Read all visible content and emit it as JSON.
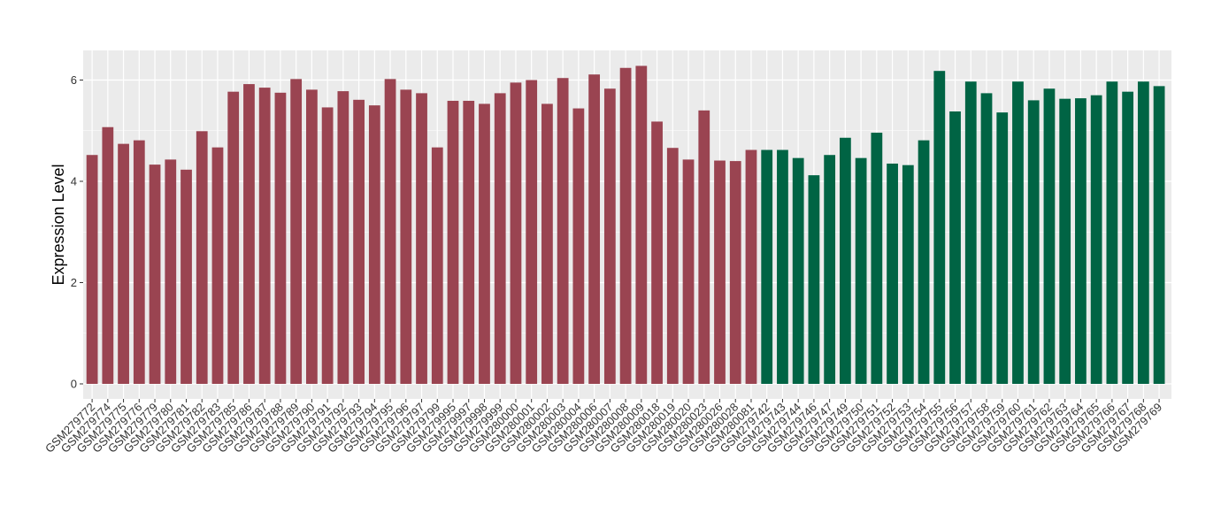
{
  "chart_data": {
    "type": "bar",
    "ylabel": "Expression Level",
    "xlabel": "",
    "ylim": [
      -0.3,
      6.6
    ],
    "yticks": [
      0,
      2,
      4,
      6
    ],
    "grid": true,
    "legend": "none",
    "colors": {
      "group1": "#9a4451",
      "group2": "#006444",
      "panel": "#ebebeb",
      "grid": "#ffffff"
    },
    "categories": [
      "GSM279772",
      "GSM279774",
      "GSM279775",
      "GSM279776",
      "GSM279779",
      "GSM279780",
      "GSM279781",
      "GSM279782",
      "GSM279783",
      "GSM279785",
      "GSM279786",
      "GSM279787",
      "GSM279788",
      "GSM279789",
      "GSM279790",
      "GSM279791",
      "GSM279792",
      "GSM279793",
      "GSM279794",
      "GSM279795",
      "GSM279796",
      "GSM279797",
      "GSM279799",
      "GSM279995",
      "GSM279997",
      "GSM279998",
      "GSM279999",
      "GSM280000",
      "GSM280001",
      "GSM280002",
      "GSM280003",
      "GSM280004",
      "GSM280006",
      "GSM280007",
      "GSM280008",
      "GSM280009",
      "GSM280018",
      "GSM280019",
      "GSM280020",
      "GSM280023",
      "GSM280026",
      "GSM280028",
      "GSM280081",
      "GSM279742",
      "GSM279743",
      "GSM279744",
      "GSM279746",
      "GSM279747",
      "GSM279749",
      "GSM279750",
      "GSM279751",
      "GSM279752",
      "GSM279753",
      "GSM279754",
      "GSM279755",
      "GSM279756",
      "GSM279757",
      "GSM279758",
      "GSM279759",
      "GSM279760",
      "GSM279761",
      "GSM279762",
      "GSM279763",
      "GSM279764",
      "GSM279765",
      "GSM279766",
      "GSM279767",
      "GSM279768",
      "GSM279769"
    ],
    "values": [
      4.52,
      5.07,
      4.74,
      4.81,
      4.33,
      4.43,
      4.23,
      4.99,
      4.67,
      5.77,
      5.92,
      5.85,
      5.75,
      6.02,
      5.81,
      5.46,
      5.78,
      5.61,
      5.5,
      6.02,
      5.81,
      5.74,
      4.67,
      5.59,
      5.59,
      5.53,
      5.74,
      5.95,
      6.0,
      5.53,
      6.04,
      5.44,
      6.11,
      5.83,
      6.24,
      6.28,
      5.18,
      4.66,
      4.43,
      5.4,
      4.41,
      4.4,
      4.62,
      4.62,
      4.62,
      4.46,
      4.12,
      4.52,
      4.86,
      4.46,
      4.96,
      4.35,
      4.32,
      4.81,
      6.18,
      5.38,
      5.97,
      5.74,
      5.36,
      5.97,
      5.6,
      5.83,
      5.63,
      5.64,
      5.7,
      5.97,
      5.77,
      5.97,
      5.88
    ],
    "group": [
      1,
      1,
      1,
      1,
      1,
      1,
      1,
      1,
      1,
      1,
      1,
      1,
      1,
      1,
      1,
      1,
      1,
      1,
      1,
      1,
      1,
      1,
      1,
      1,
      1,
      1,
      1,
      1,
      1,
      1,
      1,
      1,
      1,
      1,
      1,
      1,
      1,
      1,
      1,
      1,
      1,
      1,
      1,
      2,
      2,
      2,
      2,
      2,
      2,
      2,
      2,
      2,
      2,
      2,
      2,
      2,
      2,
      2,
      2,
      2,
      2,
      2,
      2,
      2,
      2,
      2,
      2,
      2,
      2
    ]
  }
}
